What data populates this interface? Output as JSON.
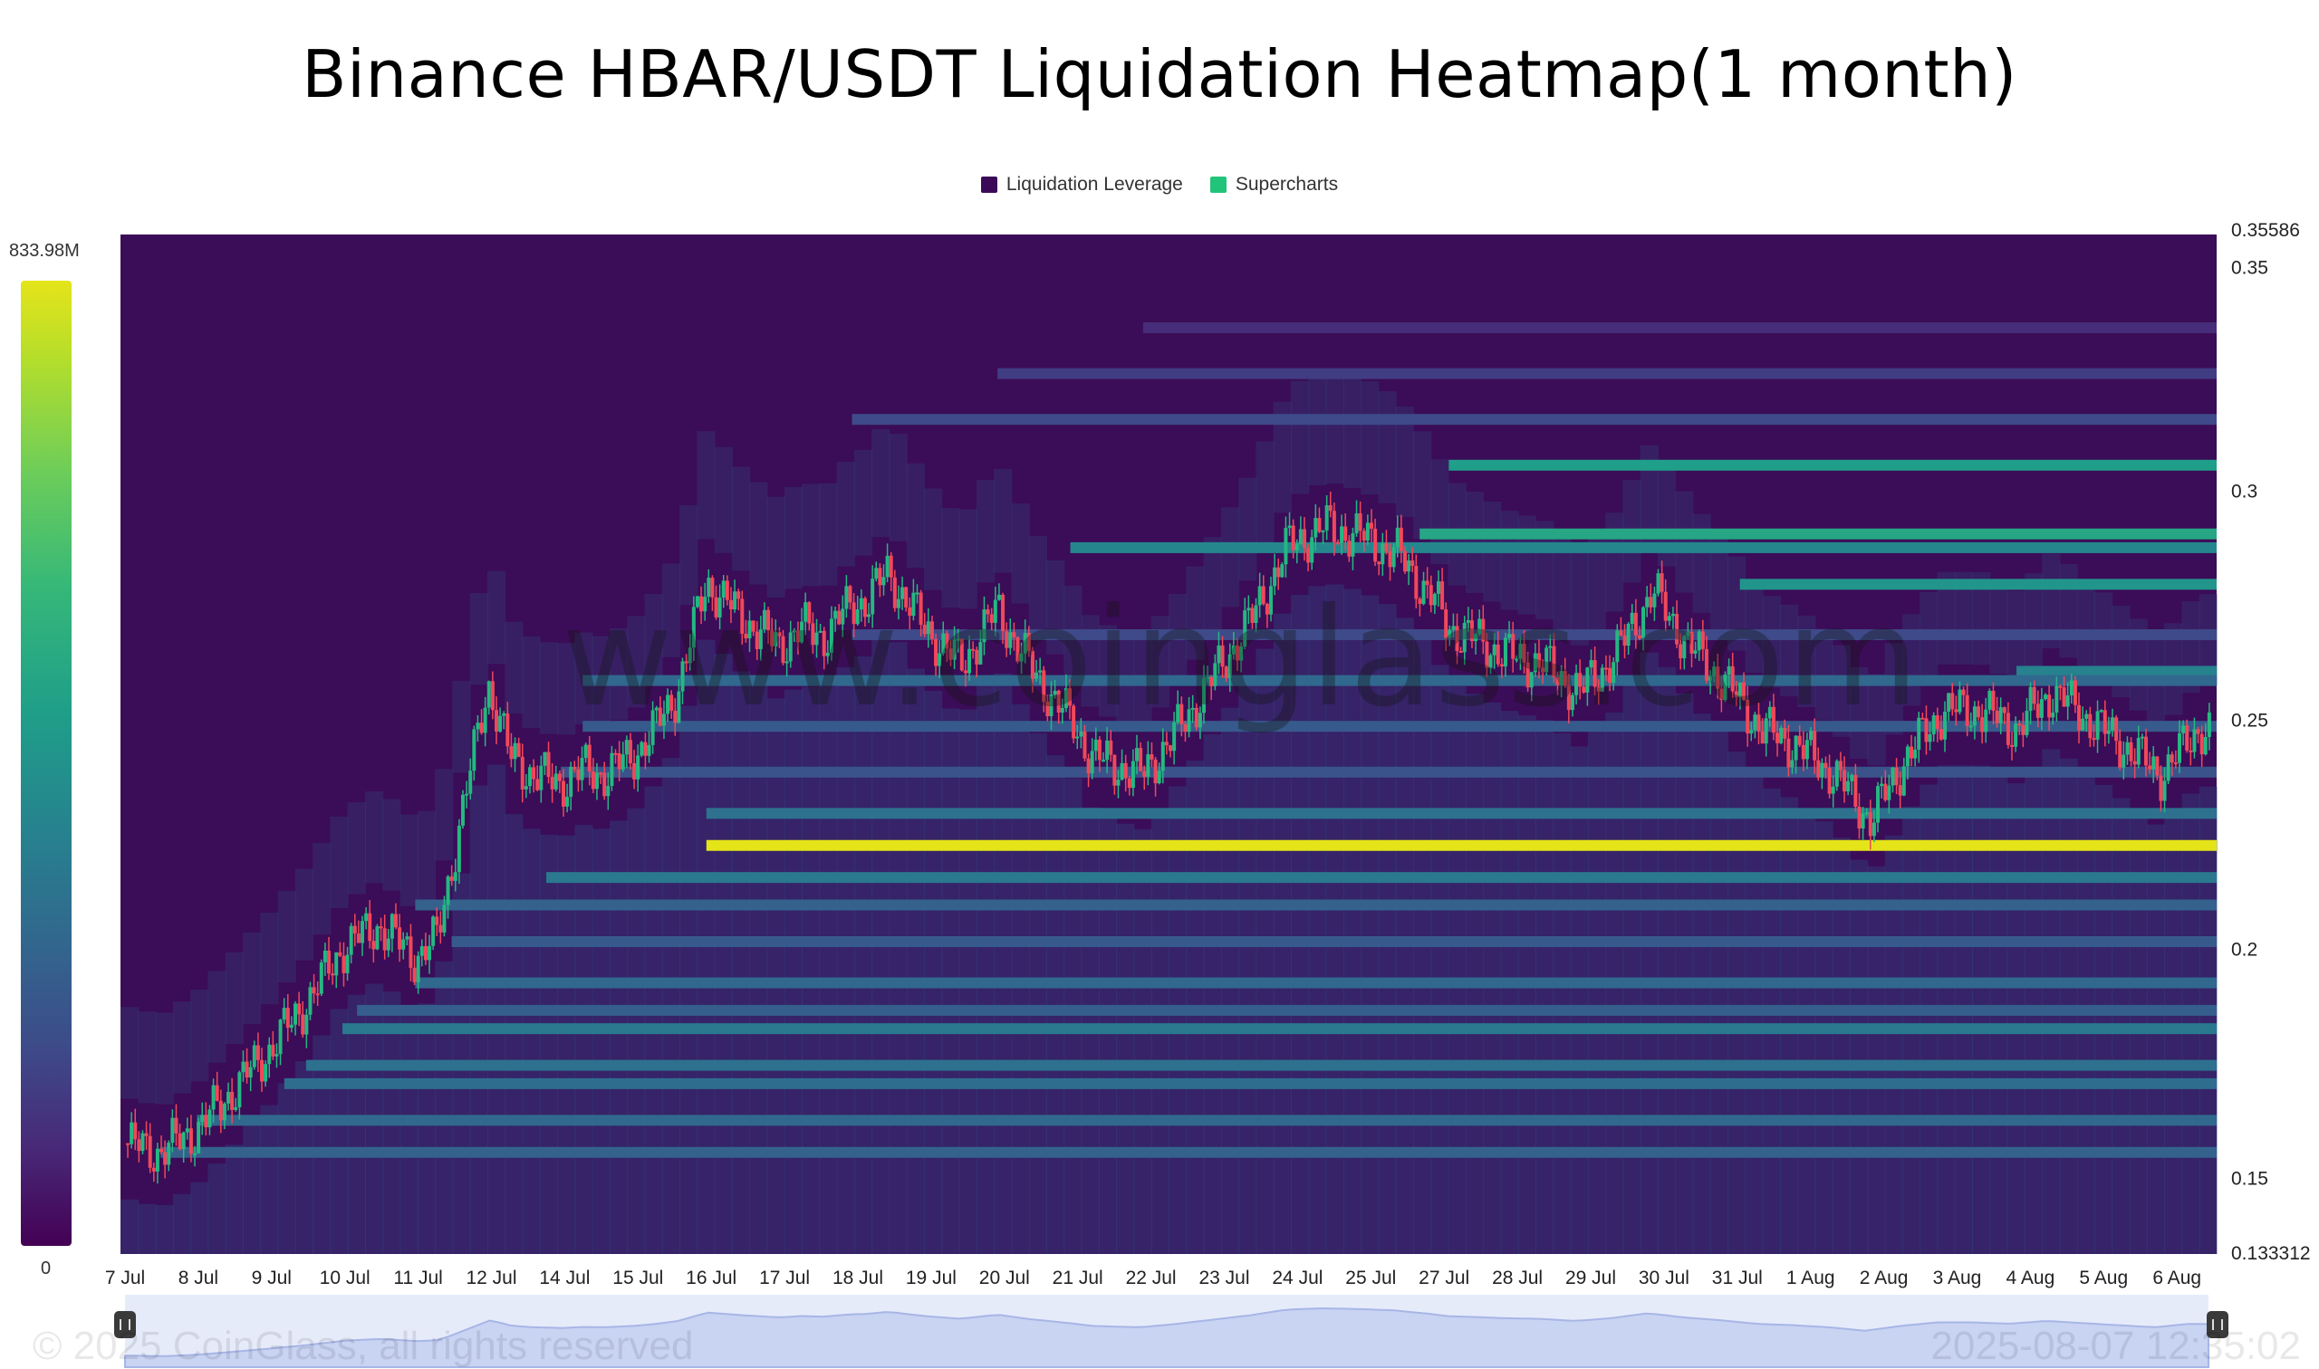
{
  "title": "Binance HBAR/USDT Liquidation Heatmap(1 month)",
  "legend": [
    {
      "label": "Liquidation Leverage",
      "color": "#440154"
    },
    {
      "label": "Supercharts",
      "color": "#22c47a"
    }
  ],
  "colorbar": {
    "max_label": "833.98M",
    "min_label": "0"
  },
  "watermark": "www.coinglass.com",
  "footer": {
    "copyright": "© 2025 CoinGlass, all rights reserved",
    "timestamp": "2025-08-07 12:35:02"
  },
  "chart_data": {
    "type": "heatmap",
    "title": "Binance HBAR/USDT Liquidation Heatmap(1 month)",
    "x_ticks": [
      "7 Jul",
      "8 Jul",
      "9 Jul",
      "10 Jul",
      "11 Jul",
      "12 Jul",
      "14 Jul",
      "15 Jul",
      "16 Jul",
      "17 Jul",
      "18 Jul",
      "19 Jul",
      "20 Jul",
      "21 Jul",
      "22 Jul",
      "23 Jul",
      "24 Jul",
      "25 Jul",
      "27 Jul",
      "28 Jul",
      "29 Jul",
      "30 Jul",
      "31 Jul",
      "1 Aug",
      "2 Aug",
      "3 Aug",
      "4 Aug",
      "5 Aug",
      "6 Aug"
    ],
    "y_ticks": [
      "0.35586",
      "0.35",
      "0.3",
      "0.25",
      "0.2",
      "0.15",
      "0.133312"
    ],
    "ylim": [
      0.133312,
      0.35586
    ],
    "price_path": {
      "t": [
        0,
        0.5,
        1,
        1.5,
        2,
        2.5,
        3,
        3.5,
        4,
        4.3,
        4.6,
        5,
        5.3,
        5.6,
        6,
        6.3,
        6.6,
        7,
        7.3,
        7.6,
        8,
        8.5,
        9,
        9.3,
        9.6,
        10,
        10.2,
        10.5,
        11,
        11.5,
        12,
        12.5,
        13,
        13.3,
        13.6,
        14,
        14.5,
        15,
        15.5,
        16,
        16.5,
        17,
        17.5,
        18,
        18.2,
        18.5,
        19,
        19.5,
        20,
        20.5,
        21,
        21.5,
        22,
        22.5,
        23,
        23.5,
        24,
        24.5,
        25,
        25.5,
        26,
        26.5,
        27,
        27.5,
        28,
        28.5,
        28.7
      ],
      "price": [
        0.1575,
        0.1555,
        0.1605,
        0.169,
        0.178,
        0.188,
        0.2,
        0.205,
        0.198,
        0.202,
        0.226,
        0.258,
        0.242,
        0.238,
        0.236,
        0.239,
        0.238,
        0.242,
        0.248,
        0.256,
        0.28,
        0.272,
        0.266,
        0.27,
        0.268,
        0.275,
        0.276,
        0.282,
        0.27,
        0.262,
        0.274,
        0.26,
        0.25,
        0.242,
        0.24,
        0.238,
        0.248,
        0.26,
        0.272,
        0.288,
        0.292,
        0.29,
        0.286,
        0.276,
        0.27,
        0.268,
        0.264,
        0.262,
        0.256,
        0.264,
        0.278,
        0.266,
        0.258,
        0.248,
        0.244,
        0.238,
        0.228,
        0.242,
        0.252,
        0.252,
        0.248,
        0.256,
        0.25,
        0.244,
        0.238,
        0.248,
        0.247
      ]
    },
    "liquidation_levels": [
      {
        "price": 0.2225,
        "start": 8.0,
        "intensity": 1.0
      },
      {
        "price": 0.2155,
        "start": 5.8,
        "intensity": 0.55
      },
      {
        "price": 0.2295,
        "start": 8.0,
        "intensity": 0.5
      },
      {
        "price": 0.2875,
        "start": 13.0,
        "intensity": 0.62
      },
      {
        "price": 0.2905,
        "start": 17.8,
        "intensity": 0.75
      },
      {
        "price": 0.3055,
        "start": 18.2,
        "intensity": 0.72
      },
      {
        "price": 0.2795,
        "start": 22.2,
        "intensity": 0.68
      },
      {
        "price": 0.2605,
        "start": 26.0,
        "intensity": 0.6
      },
      {
        "price": 0.2095,
        "start": 4.0,
        "intensity": 0.42
      },
      {
        "price": 0.2015,
        "start": 4.5,
        "intensity": 0.38
      },
      {
        "price": 0.1925,
        "start": 4.0,
        "intensity": 0.45
      },
      {
        "price": 0.1865,
        "start": 3.2,
        "intensity": 0.4
      },
      {
        "price": 0.1825,
        "start": 3.0,
        "intensity": 0.55
      },
      {
        "price": 0.1745,
        "start": 2.5,
        "intensity": 0.5
      },
      {
        "price": 0.1705,
        "start": 2.2,
        "intensity": 0.48
      },
      {
        "price": 0.1625,
        "start": 1.0,
        "intensity": 0.45
      },
      {
        "price": 0.1555,
        "start": 0.5,
        "intensity": 0.42
      },
      {
        "price": 0.2485,
        "start": 6.3,
        "intensity": 0.38
      },
      {
        "price": 0.2385,
        "start": 6.0,
        "intensity": 0.35
      },
      {
        "price": 0.2585,
        "start": 6.3,
        "intensity": 0.45
      },
      {
        "price": 0.2685,
        "start": 10.0,
        "intensity": 0.3
      },
      {
        "price": 0.3155,
        "start": 10.0,
        "intensity": 0.3
      },
      {
        "price": 0.3255,
        "start": 12.0,
        "intensity": 0.25
      },
      {
        "price": 0.3355,
        "start": 14.0,
        "intensity": 0.18
      }
    ]
  }
}
